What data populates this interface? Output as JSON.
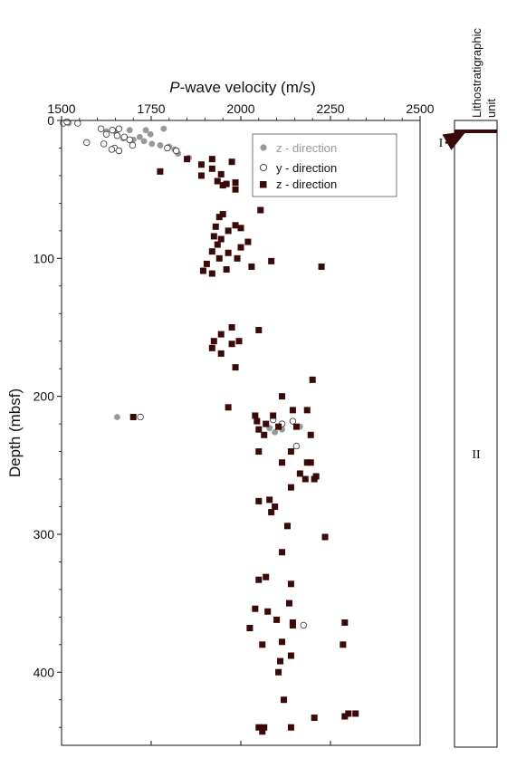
{
  "chart_data": {
    "type": "scatter",
    "title_italic": "P",
    "title_rest": "-wave velocity (m/s)",
    "ylabel": "Depth (mbsf)",
    "xlim": [
      1500,
      2500
    ],
    "ylim": [
      0,
      450
    ],
    "y_inverted": true,
    "x_ticks": [
      1500,
      1750,
      2000,
      2250,
      2500
    ],
    "y_ticks": [
      0,
      100,
      200,
      300,
      400
    ],
    "legend_position": "top-right",
    "series": [
      {
        "name": "z - direction",
        "marker": "circle-filled",
        "color": "#999999",
        "points": [
          [
            1520,
            2
          ],
          [
            1625,
            8
          ],
          [
            1650,
            8
          ],
          [
            1690,
            7
          ],
          [
            1735,
            7
          ],
          [
            1785,
            6
          ],
          [
            1672,
            13
          ],
          [
            1700,
            14
          ],
          [
            1718,
            12
          ],
          [
            1748,
            10
          ],
          [
            1730,
            15
          ],
          [
            1752,
            17
          ],
          [
            1775,
            18
          ],
          [
            1800,
            19
          ],
          [
            1815,
            21
          ],
          [
            1825,
            24
          ],
          [
            1855,
            27
          ],
          [
            1655,
            215
          ],
          [
            2080,
            223
          ],
          [
            2095,
            226
          ],
          [
            2115,
            224
          ],
          [
            2165,
            222
          ]
        ]
      },
      {
        "name": "y - direction",
        "marker": "circle-open",
        "color": "#333333",
        "points": [
          [
            1505,
            2
          ],
          [
            1515,
            1
          ],
          [
            1545,
            2
          ],
          [
            1610,
            6
          ],
          [
            1625,
            10
          ],
          [
            1642,
            7
          ],
          [
            1660,
            6
          ],
          [
            1655,
            11
          ],
          [
            1675,
            12
          ],
          [
            1690,
            14
          ],
          [
            1618,
            17
          ],
          [
            1648,
            20
          ],
          [
            1570,
            16
          ],
          [
            1640,
            21
          ],
          [
            1660,
            22
          ],
          [
            1698,
            18
          ],
          [
            1720,
            215
          ],
          [
            2090,
            217
          ],
          [
            2115,
            220
          ],
          [
            2145,
            218
          ],
          [
            2155,
            236
          ],
          [
            2175,
            366
          ],
          [
            1820,
            22
          ],
          [
            1795,
            20
          ]
        ]
      },
      {
        "name": "z - direction",
        "marker": "square-filled",
        "color": "#3a0a0a",
        "points": [
          [
            1850,
            28
          ],
          [
            1890,
            32
          ],
          [
            1920,
            35
          ],
          [
            1945,
            39
          ],
          [
            1775,
            37
          ],
          [
            1935,
            44
          ],
          [
            1950,
            47
          ],
          [
            1985,
            50
          ],
          [
            1985,
            45
          ],
          [
            1960,
            46
          ],
          [
            1890,
            40
          ],
          [
            1975,
            30
          ],
          [
            1920,
            28
          ],
          [
            2055,
            65
          ],
          [
            1950,
            68
          ],
          [
            1940,
            70
          ],
          [
            1985,
            76
          ],
          [
            2000,
            78
          ],
          [
            1965,
            80
          ],
          [
            1930,
            77
          ],
          [
            1925,
            84
          ],
          [
            1945,
            86
          ],
          [
            1935,
            90
          ],
          [
            2000,
            92
          ],
          [
            2020,
            88
          ],
          [
            1920,
            95
          ],
          [
            1965,
            96
          ],
          [
            1905,
            104
          ],
          [
            1940,
            100
          ],
          [
            1990,
            100
          ],
          [
            2085,
            102
          ],
          [
            2225,
            106
          ],
          [
            1895,
            109
          ],
          [
            1920,
            111
          ],
          [
            1960,
            108
          ],
          [
            2030,
            106
          ],
          [
            1975,
            150
          ],
          [
            2050,
            152
          ],
          [
            1945,
            155
          ],
          [
            1995,
            160
          ],
          [
            1925,
            160
          ],
          [
            1975,
            162
          ],
          [
            1920,
            165
          ],
          [
            1945,
            169
          ],
          [
            1985,
            179
          ],
          [
            1965,
            208
          ],
          [
            2200,
            188
          ],
          [
            2115,
            200
          ],
          [
            1700,
            215
          ],
          [
            2040,
            214
          ],
          [
            2090,
            214
          ],
          [
            2145,
            210
          ],
          [
            2185,
            210
          ],
          [
            2045,
            218
          ],
          [
            2070,
            220
          ],
          [
            2105,
            222
          ],
          [
            2050,
            224
          ],
          [
            2065,
            228
          ],
          [
            2155,
            222
          ],
          [
            2195,
            228
          ],
          [
            2140,
            240
          ],
          [
            2050,
            240
          ],
          [
            2195,
            248
          ],
          [
            2115,
            248
          ],
          [
            2185,
            248
          ],
          [
            2210,
            258
          ],
          [
            2165,
            256
          ],
          [
            2180,
            260
          ],
          [
            2205,
            260
          ],
          [
            2140,
            266
          ],
          [
            2080,
            275
          ],
          [
            2050,
            276
          ],
          [
            2095,
            280
          ],
          [
            2085,
            284
          ],
          [
            2130,
            294
          ],
          [
            2235,
            302
          ],
          [
            2115,
            313
          ],
          [
            2050,
            333
          ],
          [
            2070,
            331
          ],
          [
            2140,
            336
          ],
          [
            2135,
            350
          ],
          [
            2040,
            354
          ],
          [
            2075,
            356
          ],
          [
            2025,
            368
          ],
          [
            2100,
            362
          ],
          [
            2145,
            366
          ],
          [
            2145,
            364
          ],
          [
            2290,
            364
          ],
          [
            2060,
            380
          ],
          [
            2115,
            378
          ],
          [
            2285,
            380
          ],
          [
            2140,
            388
          ],
          [
            2110,
            392
          ],
          [
            2105,
            400
          ],
          [
            2120,
            420
          ],
          [
            2300,
            430
          ],
          [
            2320,
            430
          ],
          [
            2290,
            432
          ],
          [
            2205,
            433
          ],
          [
            2050,
            440
          ],
          [
            2065,
            440
          ],
          [
            2140,
            440
          ],
          [
            2060,
            443
          ]
        ]
      }
    ]
  },
  "lithology": {
    "header_line1": "Lithostratigraphic",
    "header_line2": "unit",
    "units": [
      {
        "label": "I",
        "top": 0,
        "bottom": 8
      },
      {
        "label": "II",
        "top": 8,
        "bottom": 450
      }
    ]
  }
}
